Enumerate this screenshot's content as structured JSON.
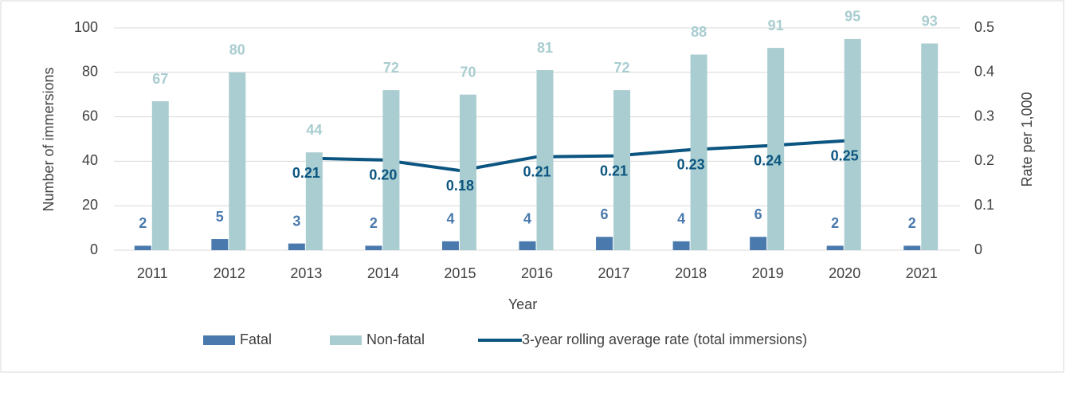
{
  "chart_data": {
    "type": "bar-line",
    "x_label": "Year",
    "y_label": "Number of immersions",
    "y2_label": "Rate per 1,000",
    "categories": [
      "2011",
      "2012",
      "2013",
      "2014",
      "2015",
      "2016",
      "2017",
      "2018",
      "2019",
      "2020",
      "2021"
    ],
    "series": [
      {
        "name": "Fatal",
        "type": "bar",
        "color": "#4a7aad",
        "values": [
          2,
          5,
          3,
          2,
          4,
          4,
          6,
          4,
          6,
          2,
          2
        ]
      },
      {
        "name": "Non-fatal",
        "type": "bar",
        "color": "#a9cdd0",
        "values": [
          67,
          80,
          44,
          72,
          70,
          81,
          72,
          88,
          91,
          95,
          93
        ]
      },
      {
        "name": "3-year rolling average rate (total immersions)",
        "type": "line",
        "axis": "y2",
        "color": "#0b5580",
        "values": [
          null,
          null,
          0.207,
          0.203,
          0.179,
          0.21,
          0.212,
          0.226,
          0.235,
          0.246,
          null
        ],
        "value_labels": [
          null,
          null,
          "0.21",
          "0.20",
          "0.18",
          "0.21",
          "0.21",
          "0.23",
          "0.24",
          "0.25",
          null
        ]
      }
    ],
    "ylim": [
      0,
      100
    ],
    "yticks": [
      0,
      20,
      40,
      60,
      80,
      100
    ],
    "y2lim": [
      0,
      0.5
    ],
    "y2ticks": [
      0,
      0.1,
      0.2,
      0.3,
      0.4,
      0.5
    ],
    "grid": true,
    "legend": "bottom"
  }
}
